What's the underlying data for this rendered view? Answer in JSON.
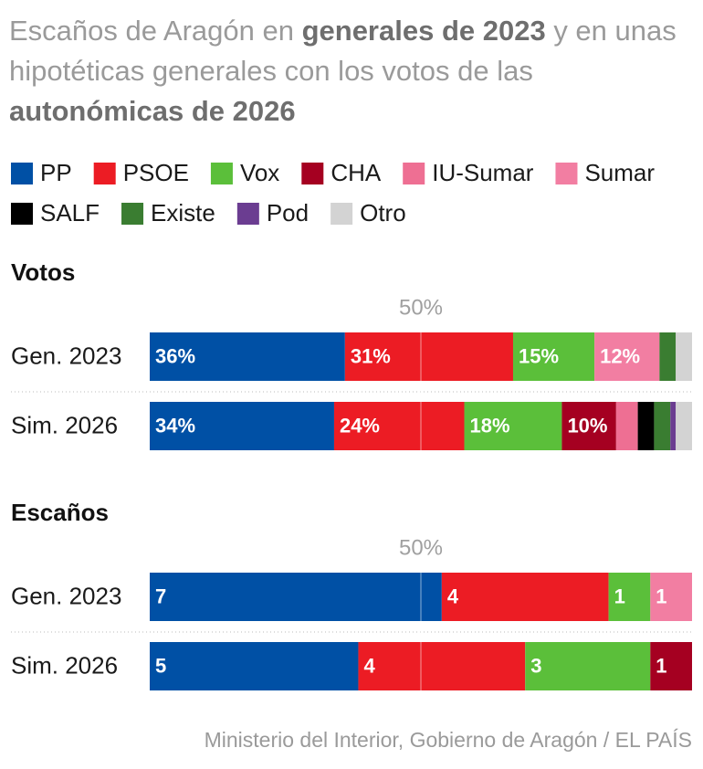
{
  "title_parts": [
    {
      "text": "Escaños de Aragón en ",
      "bold": false
    },
    {
      "text": "generales de 2023",
      "bold": true
    },
    {
      "text": " y en unas hipotéticas generales con los votos de las ",
      "bold": false
    },
    {
      "text": "autonómicas de 2026",
      "bold": true
    }
  ],
  "legend": [
    {
      "name": "PP",
      "color": "#0050a5"
    },
    {
      "name": "PSOE",
      "color": "#ec1c24"
    },
    {
      "name": "Vox",
      "color": "#5bbf3a"
    },
    {
      "name": "CHA",
      "color": "#a50021"
    },
    {
      "name": "IU-Sumar",
      "color": "#ee6f93"
    },
    {
      "name": "Sumar",
      "color": "#f27ea2"
    },
    {
      "name": "SALF",
      "color": "#000000"
    },
    {
      "name": "Existe",
      "color": "#3a7d31"
    },
    {
      "name": "Pod",
      "color": "#6b3d91"
    },
    {
      "name": "Otro",
      "color": "#d3d3d3"
    }
  ],
  "source": "Ministerio del Interior, Gobierno de Aragón / EL PAÍS",
  "chart_data": [
    {
      "type": "stacked_bar",
      "title": "Votos",
      "categories": [
        "Gen. 2023",
        "Sim. 2026"
      ],
      "xlim": [
        0,
        100
      ],
      "midline": {
        "value": 50,
        "label": "50%"
      },
      "series": [
        {
          "values": [
            36,
            34
          ],
          "value_labels": [
            "36%",
            "34%"
          ]
        },
        {
          "values": [
            31,
            24
          ],
          "value_labels": [
            "31%",
            "24%"
          ]
        },
        {
          "values": [
            15,
            18
          ],
          "value_labels": [
            "15%",
            "18%"
          ]
        },
        {
          "values": [
            0,
            10
          ],
          "value_labels": [
            null,
            "10%"
          ]
        },
        {
          "values": [
            0,
            4
          ]
        },
        {
          "values": [
            12,
            0
          ],
          "value_labels": [
            "12%",
            null
          ]
        },
        {
          "values": [
            0,
            3
          ]
        },
        {
          "values": [
            3,
            3
          ]
        },
        {
          "values": [
            0,
            1
          ]
        },
        {
          "values": [
            3,
            3
          ]
        }
      ]
    },
    {
      "type": "stacked_bar",
      "title": "Escaños",
      "categories": [
        "Gen. 2023",
        "Sim. 2026"
      ],
      "xlim": [
        0,
        13
      ],
      "midline": {
        "value": 6.5,
        "label": "50%"
      },
      "show_values": true,
      "series": [
        {
          "values": [
            7,
            5
          ]
        },
        {
          "values": [
            4,
            4
          ]
        },
        {
          "values": [
            1,
            3
          ]
        },
        {
          "values": [
            0,
            1
          ]
        },
        {
          "values": [
            0,
            0
          ]
        },
        {
          "values": [
            1,
            0
          ]
        },
        {
          "values": [
            0,
            0
          ]
        },
        {
          "values": [
            0,
            0
          ]
        },
        {
          "values": [
            0,
            0
          ]
        },
        {
          "values": [
            0,
            0
          ]
        }
      ]
    }
  ]
}
